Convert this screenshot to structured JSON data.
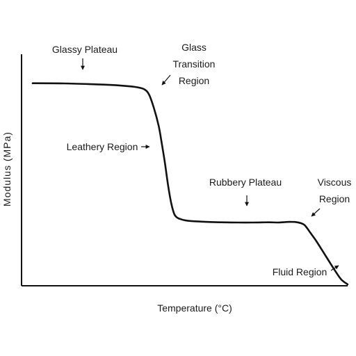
{
  "chart_data": {
    "type": "line",
    "title": "",
    "xlabel": "Temperature (°C)",
    "ylabel": "Modulus (MPa)",
    "grid": false,
    "legend": "none",
    "line_color": "#111111",
    "xlim": [
      0,
      100
    ],
    "ylim": [
      0,
      100
    ],
    "series": [
      {
        "x": [
          0,
          10,
          20,
          25,
          30,
          33,
          35.5,
          37,
          38.5,
          40,
          41,
          42,
          43,
          44,
          45,
          46,
          47,
          48,
          50,
          55,
          60,
          65,
          70,
          75,
          78,
          80,
          82,
          84,
          86,
          87,
          88,
          90,
          92,
          94,
          96,
          98,
          100
        ],
        "y": [
          91.3,
          91.2,
          90.8,
          90.5,
          90.0,
          89.5,
          88.5,
          86.0,
          80.0,
          72.0,
          64.0,
          55.0,
          45.0,
          37.0,
          32.0,
          30.4,
          29.8,
          29.4,
          29.0,
          28.6,
          28.4,
          28.3,
          28.3,
          28.4,
          28.3,
          28.5,
          28.6,
          28.4,
          27.5,
          26.0,
          24.0,
          20.0,
          15.5,
          11.0,
          6.5,
          2.5,
          0.3
        ]
      }
    ],
    "annotations": [
      {
        "id": "glassy-plateau",
        "text": [
          "Glassy Plateau"
        ]
      },
      {
        "id": "glass-transition",
        "text": [
          "Glass",
          "Transition",
          "Region"
        ]
      },
      {
        "id": "leathery-region",
        "text": [
          "Leathery Region"
        ]
      },
      {
        "id": "rubbery-plateau",
        "text": [
          "Rubbery Plateau"
        ]
      },
      {
        "id": "viscous-region",
        "text": [
          "Viscous",
          "Region"
        ]
      },
      {
        "id": "fluid-region",
        "text": [
          "Fluid Region"
        ]
      }
    ]
  }
}
